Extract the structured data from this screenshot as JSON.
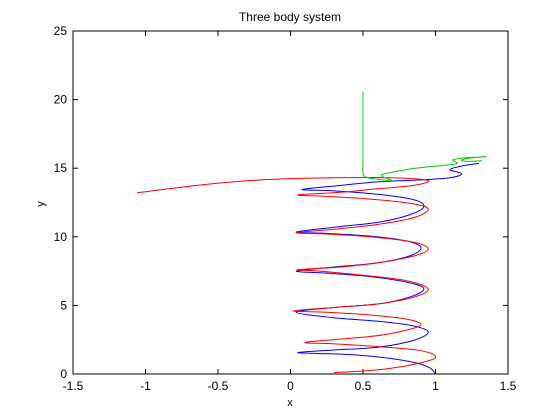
{
  "chart_data": {
    "type": "line",
    "title": "Three body system",
    "xlabel": "x",
    "ylabel": "y",
    "xlim": [
      -1.5,
      1.5
    ],
    "ylim": [
      0,
      25
    ],
    "grid": false,
    "x_ticks": [
      "-1.5",
      "-1",
      "-0.5",
      "0",
      "0.5",
      "1",
      "1.5"
    ],
    "y_ticks": [
      "0",
      "5",
      "10",
      "15",
      "20",
      "25"
    ],
    "series": [
      {
        "color": "#0000ff",
        "points": [
          [
            1.0,
            0.0
          ],
          [
            0.96,
            0.45
          ],
          [
            0.85,
            0.85
          ],
          [
            0.6,
            1.25
          ],
          [
            0.35,
            1.45
          ],
          [
            0.05,
            1.55
          ],
          [
            0.3,
            1.75
          ],
          [
            0.6,
            1.95
          ],
          [
            0.85,
            2.45
          ],
          [
            0.95,
            3.05
          ],
          [
            0.85,
            3.5
          ],
          [
            0.6,
            3.85
          ],
          [
            0.3,
            4.1
          ],
          [
            0.04,
            4.5
          ],
          [
            0.3,
            4.85
          ],
          [
            0.6,
            5.1
          ],
          [
            0.82,
            5.6
          ],
          [
            0.92,
            6.2
          ],
          [
            0.82,
            6.65
          ],
          [
            0.55,
            7.1
          ],
          [
            0.25,
            7.35
          ],
          [
            0.04,
            7.5
          ],
          [
            0.3,
            7.8
          ],
          [
            0.6,
            8.1
          ],
          [
            0.82,
            8.6
          ],
          [
            0.9,
            9.2
          ],
          [
            0.8,
            9.7
          ],
          [
            0.55,
            10.05
          ],
          [
            0.25,
            10.25
          ],
          [
            0.04,
            10.35
          ],
          [
            0.3,
            10.7
          ],
          [
            0.6,
            11.05
          ],
          [
            0.82,
            11.6
          ],
          [
            0.92,
            12.2
          ],
          [
            0.85,
            12.7
          ],
          [
            0.6,
            13.1
          ],
          [
            0.3,
            13.35
          ],
          [
            0.08,
            13.45
          ],
          [
            0.35,
            13.75
          ],
          [
            0.6,
            14.0
          ],
          [
            0.9,
            14.15
          ],
          [
            1.1,
            14.3
          ],
          [
            1.18,
            14.6
          ],
          [
            1.1,
            14.9
          ],
          [
            1.2,
            15.2
          ],
          [
            1.3,
            15.35
          ]
        ]
      },
      {
        "color": "#ff0000",
        "points": [
          [
            0.3,
            0.1
          ],
          [
            0.6,
            0.3
          ],
          [
            0.85,
            0.7
          ],
          [
            1.0,
            1.2
          ],
          [
            0.9,
            1.7
          ],
          [
            0.6,
            2.0
          ],
          [
            0.3,
            2.2
          ],
          [
            0.1,
            2.3
          ],
          [
            0.35,
            2.55
          ],
          [
            0.6,
            2.8
          ],
          [
            0.8,
            3.2
          ],
          [
            0.9,
            3.6
          ],
          [
            0.8,
            4.0
          ],
          [
            0.55,
            4.3
          ],
          [
            0.25,
            4.5
          ],
          [
            0.02,
            4.6
          ],
          [
            0.3,
            4.85
          ],
          [
            0.6,
            5.1
          ],
          [
            0.85,
            5.6
          ],
          [
            0.95,
            6.2
          ],
          [
            0.8,
            6.8
          ],
          [
            0.5,
            7.2
          ],
          [
            0.2,
            7.5
          ],
          [
            0.05,
            7.6
          ],
          [
            0.35,
            7.8
          ],
          [
            0.6,
            8.1
          ],
          [
            0.85,
            8.6
          ],
          [
            0.95,
            9.1
          ],
          [
            0.85,
            9.6
          ],
          [
            0.55,
            10.0
          ],
          [
            0.25,
            10.2
          ],
          [
            0.04,
            10.3
          ],
          [
            0.3,
            10.55
          ],
          [
            0.6,
            10.9
          ],
          [
            0.85,
            11.4
          ],
          [
            0.95,
            12.0
          ],
          [
            0.85,
            12.4
          ],
          [
            0.55,
            12.75
          ],
          [
            0.25,
            12.95
          ],
          [
            0.05,
            13.05
          ],
          [
            0.35,
            13.25
          ],
          [
            0.6,
            13.5
          ],
          [
            0.85,
            13.75
          ],
          [
            0.95,
            14.1
          ],
          [
            0.7,
            14.3
          ],
          [
            0.3,
            14.3
          ],
          [
            -0.2,
            14.15
          ],
          [
            -0.6,
            13.8
          ],
          [
            -1.06,
            13.2
          ]
        ]
      },
      {
        "color": "#00cc00",
        "points": [
          [
            0.5,
            20.6
          ],
          [
            0.5,
            17.0
          ],
          [
            0.5,
            15.5
          ],
          [
            0.5,
            14.7
          ],
          [
            0.52,
            14.35
          ],
          [
            0.6,
            14.2
          ],
          [
            0.7,
            14.1
          ],
          [
            0.63,
            14.5
          ],
          [
            0.8,
            14.9
          ],
          [
            0.95,
            15.1
          ],
          [
            1.05,
            15.2
          ],
          [
            1.15,
            15.35
          ],
          [
            1.12,
            15.6
          ],
          [
            1.2,
            15.75
          ],
          [
            1.3,
            15.8
          ],
          [
            1.35,
            15.85
          ],
          [
            1.25,
            15.75
          ],
          [
            1.18,
            15.6
          ],
          [
            1.22,
            15.5
          ],
          [
            1.32,
            15.55
          ]
        ]
      }
    ]
  }
}
